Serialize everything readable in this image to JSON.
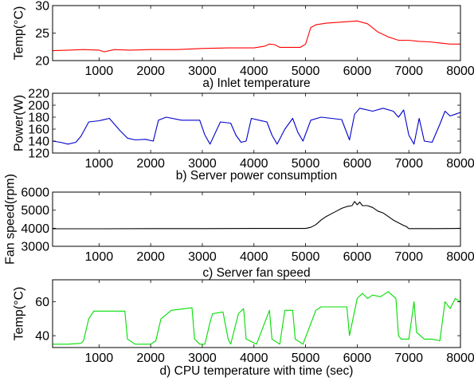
{
  "chart_data": [
    {
      "type": "line",
      "title": "a) Inlet temperature",
      "ylabel": "Temp(°C)",
      "xlim": [
        100,
        8000
      ],
      "ylim": [
        20,
        30
      ],
      "xticks": [
        "1000",
        "2000",
        "3000",
        "4000",
        "5000",
        "6000",
        "7000",
        "8000"
      ],
      "xtick_values": [
        1000,
        2000,
        3000,
        4000,
        5000,
        6000,
        7000,
        8000
      ],
      "yticks": [
        "20",
        "25",
        "30"
      ],
      "ytick_values": [
        20,
        25,
        30
      ],
      "color": "#ff0000",
      "series": [
        {
          "x": [
            100,
            400,
            700,
            1000,
            1100,
            1300,
            1600,
            2000,
            2500,
            3000,
            3500,
            4000,
            4200,
            4300,
            4400,
            4500,
            4700,
            4900,
            5000,
            5050,
            5100,
            5200,
            5400,
            5700,
            6000,
            6200,
            6400,
            6600,
            6700,
            6800,
            7000,
            7200,
            7400,
            7600,
            7800,
            8000
          ],
          "values": [
            21.8,
            21.9,
            22.0,
            21.9,
            21.6,
            22.0,
            21.9,
            22.0,
            22.0,
            22.2,
            22.3,
            22.3,
            22.6,
            23.0,
            22.9,
            22.4,
            22.4,
            22.4,
            23.0,
            24.5,
            26.0,
            26.5,
            26.8,
            27.0,
            27.2,
            26.7,
            25.2,
            24.3,
            24.0,
            23.7,
            23.7,
            23.5,
            23.4,
            23.2,
            23.0,
            23.0
          ]
        }
      ]
    },
    {
      "type": "line",
      "title": "b) Server power consumption",
      "ylabel": "Power(W)",
      "xlim": [
        100,
        8000
      ],
      "ylim": [
        120,
        220
      ],
      "xticks": [
        "1000",
        "2000",
        "3000",
        "4000",
        "5000",
        "6000",
        "7000",
        "8000"
      ],
      "xtick_values": [
        1000,
        2000,
        3000,
        4000,
        5000,
        6000,
        7000,
        8000
      ],
      "yticks": [
        "120",
        "140",
        "160",
        "180",
        "200",
        "220"
      ],
      "ytick_values": [
        120,
        140,
        160,
        180,
        200,
        220
      ],
      "color": "#0000cc",
      "series": [
        {
          "x": [
            100,
            250,
            400,
            550,
            650,
            800,
            1000,
            1200,
            1400,
            1550,
            1700,
            1900,
            2050,
            2150,
            2300,
            2600,
            2800,
            2950,
            3050,
            3150,
            3350,
            3550,
            3650,
            3750,
            3850,
            3950,
            4100,
            4250,
            4350,
            4450,
            4600,
            4750,
            4850,
            4950,
            5100,
            5300,
            5500,
            5700,
            5850,
            5950,
            6050,
            6300,
            6500,
            6700,
            6800,
            6900,
            7000,
            7100,
            7200,
            7300,
            7450,
            7600,
            7700,
            7800,
            7900,
            8000
          ],
          "values": [
            140,
            138,
            135,
            138,
            148,
            172,
            174,
            178,
            158,
            145,
            142,
            143,
            140,
            175,
            180,
            175,
            175,
            175,
            150,
            135,
            172,
            170,
            150,
            138,
            140,
            178,
            175,
            172,
            150,
            135,
            160,
            178,
            155,
            140,
            175,
            180,
            178,
            176,
            142,
            185,
            195,
            190,
            195,
            190,
            180,
            192,
            150,
            135,
            178,
            140,
            138,
            168,
            190,
            182,
            185,
            188
          ]
        }
      ]
    },
    {
      "type": "line",
      "title": "c) Server fan speed",
      "ylabel": "Fan speed(rpm)",
      "xlim": [
        100,
        8000
      ],
      "ylim": [
        3000,
        6000
      ],
      "xticks": [
        "1000",
        "2000",
        "3000",
        "4000",
        "5000",
        "6000",
        "7000",
        "8000"
      ],
      "xtick_values": [
        1000,
        2000,
        3000,
        4000,
        5000,
        6000,
        7000,
        8000
      ],
      "yticks": [
        "3000",
        "4000",
        "5000",
        "6000"
      ],
      "ytick_values": [
        3000,
        4000,
        5000,
        6000
      ],
      "color": "#000000",
      "series": [
        {
          "x": [
            100,
            1000,
            2000,
            3000,
            4000,
            5000,
            5100,
            5200,
            5300,
            5400,
            5500,
            5600,
            5700,
            5800,
            5900,
            5950,
            6000,
            6050,
            6100,
            6200,
            6300,
            6400,
            6500,
            6600,
            6700,
            6800,
            6900,
            6950,
            7000,
            7500,
            8000
          ],
          "values": [
            3970,
            3970,
            3980,
            3980,
            3990,
            3990,
            4050,
            4200,
            4450,
            4650,
            4800,
            4950,
            5100,
            5200,
            5250,
            5480,
            5300,
            5450,
            5250,
            5250,
            5150,
            4950,
            4850,
            4650,
            4450,
            4300,
            4150,
            4100,
            3980,
            3980,
            3990
          ]
        }
      ]
    },
    {
      "type": "line",
      "title": "d) CPU temperature with time (sec)",
      "ylabel": "Temp(°C)",
      "xlim": [
        100,
        8000
      ],
      "ylim": [
        33,
        73
      ],
      "xticks": [
        "1000",
        "2000",
        "3000",
        "4000",
        "5000",
        "6000",
        "7000",
        "8000"
      ],
      "xtick_values": [
        1000,
        2000,
        3000,
        4000,
        5000,
        6000,
        7000,
        8000
      ],
      "yticks": [
        "40",
        "60"
      ],
      "ytick_values": [
        40,
        60
      ],
      "color": "#00dd00",
      "series": [
        {
          "x": [
            100,
            400,
            650,
            700,
            800,
            900,
            1500,
            1550,
            1700,
            2000,
            2100,
            2200,
            2400,
            2800,
            2850,
            2950,
            3050,
            3150,
            3200,
            3400,
            3500,
            3550,
            3700,
            3800,
            3850,
            4050,
            4300,
            4350,
            4500,
            4600,
            4750,
            4800,
            4950,
            5200,
            5300,
            5800,
            5850,
            6000,
            6100,
            6200,
            6300,
            6450,
            6600,
            6750,
            6800,
            6850,
            7000,
            7100,
            7150,
            7300,
            7450,
            7600,
            7700,
            7800,
            7900,
            8000
          ],
          "values": [
            35,
            35,
            35.5,
            37,
            50,
            54.5,
            54.5,
            38,
            35,
            35,
            37,
            50,
            55,
            56.5,
            38,
            35,
            35,
            48,
            53,
            54,
            38,
            35,
            53,
            56,
            38,
            35,
            55,
            38,
            35,
            55,
            55,
            38,
            35,
            55,
            57,
            57,
            40,
            62,
            65,
            62,
            64,
            63,
            66,
            62,
            40,
            38,
            38,
            60,
            42,
            38,
            38,
            37,
            60,
            56,
            62,
            60
          ]
        }
      ]
    }
  ]
}
